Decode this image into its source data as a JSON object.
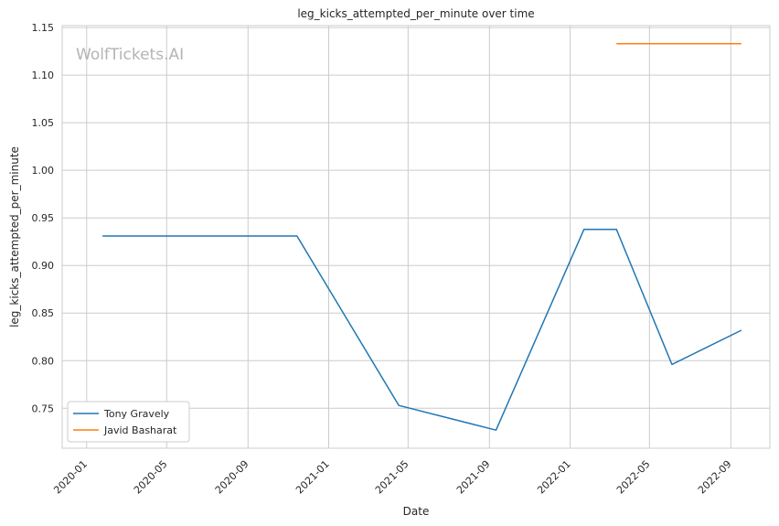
{
  "chart_data": {
    "type": "line",
    "title": "leg_kicks_attempted_per_minute over time",
    "xlabel": "Date",
    "ylabel": "leg_kicks_attempted_per_minute",
    "watermark": "WolfTickets.AI",
    "xlim": [
      "2019-11-25",
      "2022-10-30"
    ],
    "ylim": [
      0.708,
      1.152
    ],
    "x_ticks": [
      "2020-01",
      "2020-05",
      "2020-09",
      "2021-01",
      "2021-05",
      "2021-09",
      "2022-01",
      "2022-05",
      "2022-09"
    ],
    "y_ticks": [
      0.75,
      0.8,
      0.85,
      0.9,
      0.95,
      1.0,
      1.05,
      1.1,
      1.15
    ],
    "grid": true,
    "legend": "lower-left",
    "series": [
      {
        "name": "Tony Gravely",
        "color": "#1f77b4",
        "x": [
          "2020-01-25",
          "2020-11-14",
          "2021-04-17",
          "2021-09-11",
          "2022-01-22",
          "2022-03-12",
          "2022-06-04",
          "2022-09-17"
        ],
        "y": [
          0.931,
          0.931,
          0.753,
          0.727,
          0.938,
          0.938,
          0.796,
          0.832
        ]
      },
      {
        "name": "Javid Basharat",
        "color": "#ff7f0e",
        "x": [
          "2022-03-12",
          "2022-09-17"
        ],
        "y": [
          1.133,
          1.133
        ]
      }
    ]
  }
}
